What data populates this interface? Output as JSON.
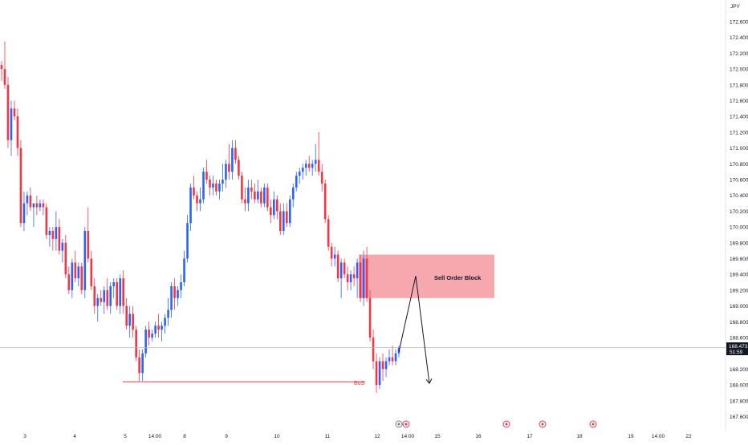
{
  "chart_data": {
    "type": "candlestick",
    "currency_label": "JPY",
    "y_ticks": [
      "172.600",
      "172.400",
      "172.200",
      "172.000",
      "171.800",
      "171.600",
      "171.400",
      "171.200",
      "171.000",
      "170.800",
      "170.600",
      "170.400",
      "170.200",
      "170.000",
      "169.800",
      "169.600",
      "169.400",
      "169.200",
      "169.000",
      "168.800",
      "168.600",
      "168.400",
      "168.200",
      "168.000",
      "167.800",
      "167.600"
    ],
    "x_ticks": [
      "3",
      "4",
      "5",
      "14:00",
      "8",
      "9",
      "10",
      "11",
      "12",
      "14:00",
      "15",
      "16",
      "17",
      "18",
      "19",
      "14:00",
      "22"
    ],
    "current_price": "168.473",
    "countdown": "51:59",
    "annotations": {
      "order_block_label": "Sell Order Block",
      "bos_label": "BoS"
    },
    "zone": {
      "top": 169.65,
      "bottom": 169.1,
      "label": "Sell Order Block"
    },
    "bos_level": 168.04,
    "projection": [
      168.42,
      169.38,
      168.02
    ],
    "up_color": "#2962ff",
    "down_color": "#f23645",
    "zone_color": "#f7a3ab",
    "candles": [
      [
        172.05,
        172.1,
        171.85,
        172.0
      ],
      [
        172.0,
        172.35,
        171.75,
        171.8
      ],
      [
        171.8,
        171.9,
        171.0,
        171.1
      ],
      [
        171.1,
        171.6,
        170.9,
        171.5
      ],
      [
        171.5,
        171.6,
        171.35,
        171.4
      ],
      [
        171.4,
        171.5,
        170.9,
        171.0
      ],
      [
        171.0,
        171.1,
        170.0,
        170.05
      ],
      [
        170.05,
        170.45,
        169.95,
        170.3
      ],
      [
        170.3,
        170.45,
        170.15,
        170.4
      ],
      [
        170.4,
        170.5,
        170.2,
        170.25
      ],
      [
        170.25,
        170.3,
        170.0,
        170.3
      ],
      [
        170.3,
        170.4,
        170.15,
        170.25
      ],
      [
        170.25,
        170.35,
        170.2,
        170.3
      ],
      [
        170.3,
        170.35,
        170.15,
        170.25
      ],
      [
        170.25,
        170.3,
        169.85,
        169.9
      ],
      [
        169.9,
        170.0,
        169.75,
        169.95
      ],
      [
        169.95,
        170.0,
        169.7,
        169.85
      ],
      [
        169.85,
        170.2,
        169.7,
        170.0
      ],
      [
        170.0,
        170.1,
        169.65,
        169.7
      ],
      [
        169.7,
        169.85,
        169.55,
        169.8
      ],
      [
        169.8,
        169.9,
        169.35,
        169.4
      ],
      [
        169.4,
        169.5,
        169.15,
        169.2
      ],
      [
        169.2,
        169.6,
        169.1,
        169.55
      ],
      [
        169.55,
        169.7,
        169.3,
        169.35
      ],
      [
        169.35,
        169.55,
        169.25,
        169.5
      ],
      [
        169.5,
        169.55,
        169.15,
        169.2
      ],
      [
        169.2,
        170.0,
        169.1,
        169.95
      ],
      [
        169.95,
        170.25,
        169.55,
        169.6
      ],
      [
        169.6,
        169.7,
        169.2,
        169.25
      ],
      [
        169.25,
        169.35,
        168.9,
        169.0
      ],
      [
        169.0,
        169.15,
        168.8,
        169.1
      ],
      [
        169.1,
        169.2,
        169.0,
        169.05
      ],
      [
        169.05,
        169.25,
        168.9,
        169.2
      ],
      [
        169.2,
        169.35,
        168.95,
        169.0
      ],
      [
        169.0,
        169.3,
        168.9,
        169.25
      ],
      [
        169.25,
        169.35,
        169.1,
        169.3
      ],
      [
        169.3,
        169.35,
        168.95,
        169.0
      ],
      [
        169.0,
        169.4,
        168.9,
        169.35
      ],
      [
        169.35,
        169.45,
        168.9,
        169.0
      ],
      [
        169.0,
        169.1,
        168.7,
        168.75
      ],
      [
        168.75,
        169.0,
        168.6,
        168.9
      ],
      [
        168.9,
        169.0,
        168.6,
        168.7
      ],
      [
        168.7,
        168.75,
        168.3,
        168.35
      ],
      [
        168.35,
        168.45,
        168.05,
        168.15
      ],
      [
        168.15,
        168.45,
        168.05,
        168.4
      ],
      [
        168.4,
        168.75,
        168.35,
        168.7
      ],
      [
        168.7,
        168.8,
        168.5,
        168.6
      ],
      [
        168.6,
        168.7,
        168.55,
        168.65
      ],
      [
        168.65,
        168.8,
        168.6,
        168.75
      ],
      [
        168.75,
        168.9,
        168.6,
        168.7
      ],
      [
        168.7,
        168.8,
        168.55,
        168.75
      ],
      [
        168.75,
        168.9,
        168.65,
        168.85
      ],
      [
        168.85,
        169.1,
        168.75,
        168.95
      ],
      [
        168.95,
        169.3,
        168.85,
        169.25
      ],
      [
        169.25,
        169.35,
        168.95,
        169.1
      ],
      [
        169.1,
        169.25,
        169.0,
        169.2
      ],
      [
        169.2,
        169.4,
        169.1,
        169.3
      ],
      [
        169.3,
        169.7,
        169.25,
        169.6
      ],
      [
        169.6,
        170.15,
        169.55,
        170.05
      ],
      [
        170.05,
        170.55,
        169.95,
        170.5
      ],
      [
        170.5,
        170.65,
        170.35,
        170.4
      ],
      [
        170.4,
        170.45,
        170.2,
        170.3
      ],
      [
        170.3,
        170.5,
        170.2,
        170.35
      ],
      [
        170.35,
        170.75,
        170.3,
        170.7
      ],
      [
        170.7,
        170.85,
        170.55,
        170.6
      ],
      [
        170.6,
        170.65,
        170.4,
        170.5
      ],
      [
        170.5,
        170.65,
        170.4,
        170.55
      ],
      [
        170.55,
        170.6,
        170.4,
        170.45
      ],
      [
        170.45,
        170.6,
        170.35,
        170.55
      ],
      [
        170.55,
        170.8,
        170.45,
        170.6
      ],
      [
        170.6,
        170.85,
        170.5,
        170.8
      ],
      [
        170.8,
        171.05,
        170.6,
        170.7
      ],
      [
        170.7,
        171.1,
        170.6,
        171.0
      ],
      [
        171.0,
        171.1,
        170.8,
        170.85
      ],
      [
        170.85,
        170.9,
        170.6,
        170.65
      ],
      [
        170.65,
        170.7,
        170.3,
        170.35
      ],
      [
        170.35,
        170.5,
        170.2,
        170.3
      ],
      [
        170.3,
        170.6,
        170.2,
        170.5
      ],
      [
        170.5,
        170.6,
        170.35,
        170.45
      ],
      [
        170.45,
        170.55,
        170.3,
        170.35
      ],
      [
        170.35,
        170.6,
        170.3,
        170.45
      ],
      [
        170.45,
        170.5,
        170.25,
        170.3
      ],
      [
        170.3,
        170.55,
        170.25,
        170.5
      ],
      [
        170.5,
        170.55,
        170.2,
        170.25
      ],
      [
        170.25,
        170.35,
        170.05,
        170.15
      ],
      [
        170.15,
        170.45,
        170.1,
        170.35
      ],
      [
        170.35,
        170.4,
        170.1,
        170.2
      ],
      [
        170.2,
        170.3,
        169.9,
        169.95
      ],
      [
        169.95,
        170.3,
        169.9,
        170.2
      ],
      [
        170.2,
        170.3,
        170.0,
        170.05
      ],
      [
        170.05,
        170.4,
        170.0,
        170.35
      ],
      [
        170.35,
        170.55,
        170.25,
        170.5
      ],
      [
        170.5,
        170.7,
        170.45,
        170.65
      ],
      [
        170.65,
        170.75,
        170.55,
        170.7
      ],
      [
        170.7,
        170.8,
        170.6,
        170.75
      ],
      [
        170.75,
        170.85,
        170.65,
        170.8
      ],
      [
        170.8,
        170.9,
        170.7,
        170.75
      ],
      [
        170.75,
        170.85,
        170.65,
        170.8
      ],
      [
        170.8,
        171.05,
        170.7,
        170.85
      ],
      [
        170.85,
        171.2,
        170.65,
        170.7
      ],
      [
        170.7,
        170.8,
        170.45,
        170.55
      ],
      [
        170.55,
        170.6,
        170.05,
        170.1
      ],
      [
        170.1,
        170.15,
        169.7,
        169.75
      ],
      [
        169.75,
        169.8,
        169.5,
        169.6
      ],
      [
        169.6,
        169.75,
        169.5,
        169.65
      ],
      [
        169.65,
        169.7,
        169.3,
        169.35
      ],
      [
        169.35,
        169.6,
        169.1,
        169.55
      ],
      [
        169.55,
        169.6,
        169.35,
        169.4
      ],
      [
        169.4,
        169.5,
        169.2,
        169.3
      ],
      [
        169.3,
        169.45,
        169.2,
        169.4
      ],
      [
        169.4,
        169.5,
        169.25,
        169.35
      ],
      [
        169.35,
        169.6,
        169.1,
        169.55
      ],
      [
        169.55,
        169.65,
        169.05,
        169.1
      ],
      [
        169.1,
        169.7,
        169.0,
        169.6
      ],
      [
        169.6,
        169.75,
        169.05,
        169.1
      ],
      [
        169.1,
        169.2,
        168.55,
        168.6
      ],
      [
        168.6,
        168.7,
        168.2,
        168.3
      ],
      [
        168.3,
        168.4,
        167.9,
        168.0
      ],
      [
        168.0,
        168.35,
        167.95,
        168.3
      ],
      [
        168.3,
        168.4,
        168.05,
        168.2
      ],
      [
        168.2,
        168.35,
        168.1,
        168.3
      ],
      [
        168.3,
        168.45,
        168.25,
        168.35
      ],
      [
        168.35,
        168.5,
        168.25,
        168.3
      ],
      [
        168.3,
        168.45,
        168.25,
        168.4
      ],
      [
        168.4,
        168.5,
        168.35,
        168.47
      ]
    ]
  }
}
